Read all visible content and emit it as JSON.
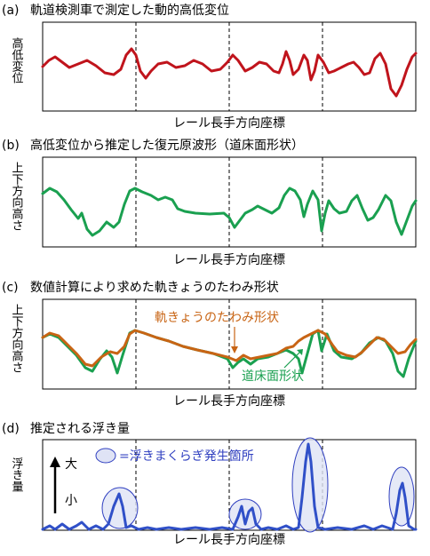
{
  "panels": [
    {
      "label": "(a)",
      "title": "軌道検測車で測定した動的高低変位",
      "ylabel": "高低変位",
      "xlabel": "レール長手方向座標"
    },
    {
      "label": "(b)",
      "title": "高低変位から推定した復元原波形（道床面形状）",
      "ylabel": "上下方向高さ",
      "xlabel": "レール長手方向座標"
    },
    {
      "label": "(c)",
      "title": "数値計算により求めた軌きょうのたわみ形状",
      "ylabel": "上下方向高さ",
      "xlabel": "レール長手方向座標",
      "annotations": [
        "軌きょうのたわみ形状",
        "道床面形状"
      ]
    },
    {
      "label": "(d)",
      "title": "推定される浮き量",
      "ylabel": "浮き量",
      "xlabel": "レール長手方向座標",
      "legend": "=浮きまくらぎ発生箇所",
      "large": "大",
      "small": "小"
    }
  ]
}
